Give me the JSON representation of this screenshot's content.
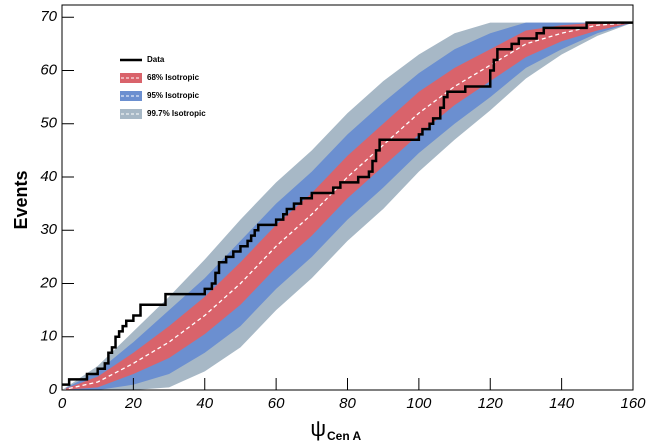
{
  "chart_data": {
    "type": "line",
    "ylabel": "Events",
    "xlabel": "ψ",
    "xlabel_subscript": "Cen A",
    "xlim": [
      0,
      160
    ],
    "ylim": [
      0,
      72.3
    ],
    "xticks": [
      0,
      20,
      40,
      60,
      80,
      100,
      120,
      140,
      160
    ],
    "yticks": [
      0,
      10,
      20,
      30,
      40,
      50,
      60,
      70
    ],
    "series": [
      {
        "name": "Data",
        "color": "#000000",
        "x": [
          0,
          2,
          7,
          10,
          12,
          13,
          14,
          15,
          16,
          17,
          18,
          20,
          22,
          29,
          40,
          42,
          43,
          44,
          46,
          48,
          50,
          52,
          53,
          54,
          55,
          60,
          62,
          63,
          65,
          67,
          70,
          76,
          78,
          83,
          86,
          87,
          88,
          89,
          100,
          101,
          103,
          104,
          106,
          107,
          108,
          113,
          120,
          121,
          122,
          126,
          128,
          133,
          135,
          147
        ],
        "values": [
          1,
          2,
          3,
          4,
          5,
          7,
          8,
          10,
          11,
          12,
          13,
          14,
          16,
          18,
          19,
          20,
          22,
          24,
          25,
          26,
          27,
          28,
          29,
          30,
          31,
          32,
          33,
          34,
          35,
          36,
          37,
          38,
          39,
          40,
          41,
          43,
          45,
          47,
          48,
          49,
          50,
          51,
          53,
          55,
          56,
          57,
          60,
          62,
          64,
          65,
          66,
          67,
          68,
          69
        ]
      }
    ],
    "model_x": [
      0,
      10,
      20,
      30,
      40,
      50,
      60,
      70,
      80,
      90,
      100,
      110,
      120,
      130,
      140,
      150,
      160
    ],
    "median": [
      0,
      1.5,
      5,
      9,
      14,
      20,
      27,
      33,
      40,
      46,
      52,
      57,
      61,
      65,
      67,
      68.5,
      69
    ],
    "bands": [
      {
        "name": "99.7% Isotropic",
        "color": "#a7b8c6",
        "lower": [
          0,
          0,
          0,
          0.5,
          3.5,
          8,
          15,
          21,
          28,
          34,
          41,
          47,
          52.5,
          58.5,
          63,
          66.5,
          69
        ],
        "upper": [
          0,
          4.5,
          11,
          17.5,
          24.5,
          32,
          39,
          45,
          52,
          58,
          63,
          67,
          69,
          69,
          69,
          69,
          69
        ]
      },
      {
        "name": "95% Isotropic",
        "color": "#6b8fd0",
        "lower": [
          0,
          0,
          1,
          3,
          7,
          12,
          19,
          25,
          32,
          38,
          44.5,
          50,
          55,
          60.5,
          64,
          67,
          69
        ],
        "upper": [
          0,
          3.5,
          9,
          15,
          21,
          28,
          35,
          41,
          48,
          54,
          59.5,
          64,
          67,
          69,
          69,
          69,
          69
        ]
      },
      {
        "name": "68% Isotropic",
        "color": "#d9636b",
        "lower": [
          0,
          0.5,
          3,
          6,
          10.5,
          16,
          23,
          29,
          36,
          42,
          48,
          53.5,
          58,
          62.5,
          65.5,
          67.5,
          69
        ],
        "upper": [
          0,
          2.5,
          7,
          12,
          17.5,
          24,
          31,
          37,
          44,
          50,
          56,
          60.5,
          64,
          67.5,
          68.5,
          69,
          69
        ]
      }
    ]
  }
}
